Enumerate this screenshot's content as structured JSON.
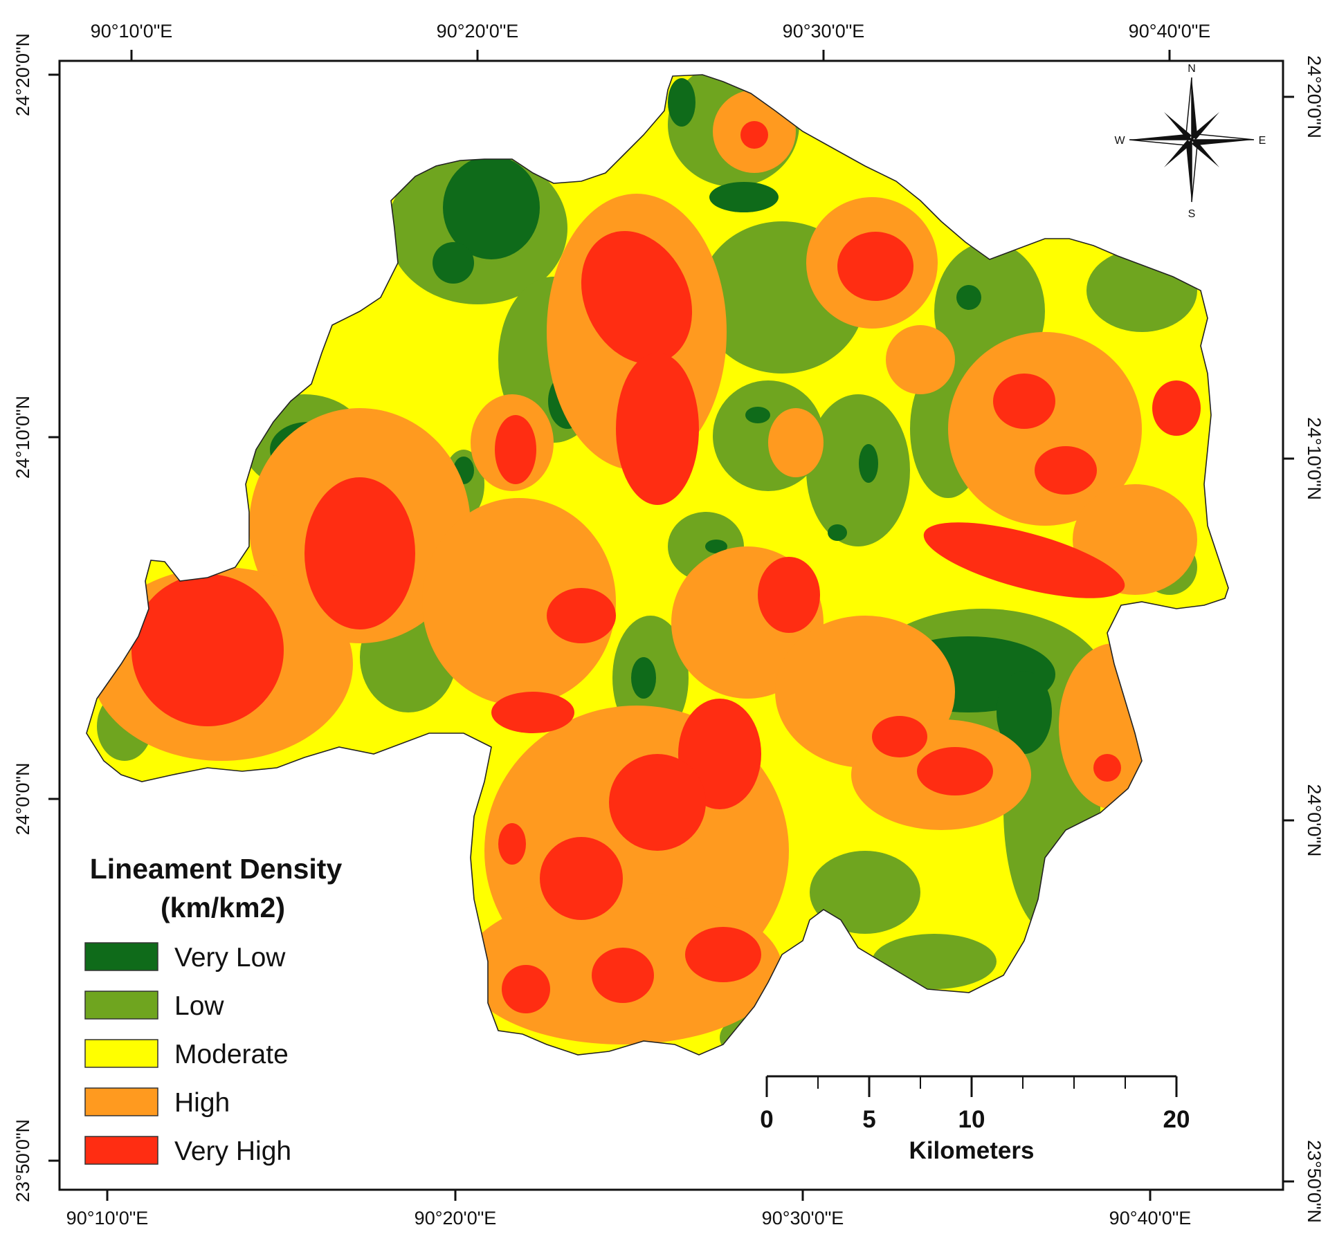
{
  "legend": {
    "title_line1": "Lineament Density",
    "title_line2": "(km/km2)",
    "classes": [
      {
        "label": "Very Low",
        "color": "#0f6b1a"
      },
      {
        "label": "Low",
        "color": "#6fa51f"
      },
      {
        "label": "Moderate",
        "color": "#ffff00"
      },
      {
        "label": "High",
        "color": "#ff9a1f"
      },
      {
        "label": "Very High",
        "color": "#ff2d12"
      }
    ]
  },
  "axes": {
    "top_longitudes": [
      "90°10'0\"E",
      "90°20'0\"E",
      "90°30'0\"E",
      "90°40'0\"E"
    ],
    "bottom_longitudes": [
      "90°10'0\"E",
      "90°20'0\"E",
      "90°30'0\"E",
      "90°40'0\"E"
    ],
    "left_latitudes": [
      "24°20'0\"N",
      "24°10'0\"N",
      "24°0'0\"N",
      "23°50'0\"N"
    ],
    "right_latitudes": [
      "24°20'0\"N",
      "24°10'0\"N",
      "24°0'0\"N",
      "23°50'0\"N"
    ]
  },
  "compass": {
    "north": "N",
    "south": "S",
    "east": "E",
    "west": "W"
  },
  "scale_bar": {
    "ticks": [
      "0",
      "5",
      "10",
      "20"
    ],
    "unit": "Kilometers"
  }
}
